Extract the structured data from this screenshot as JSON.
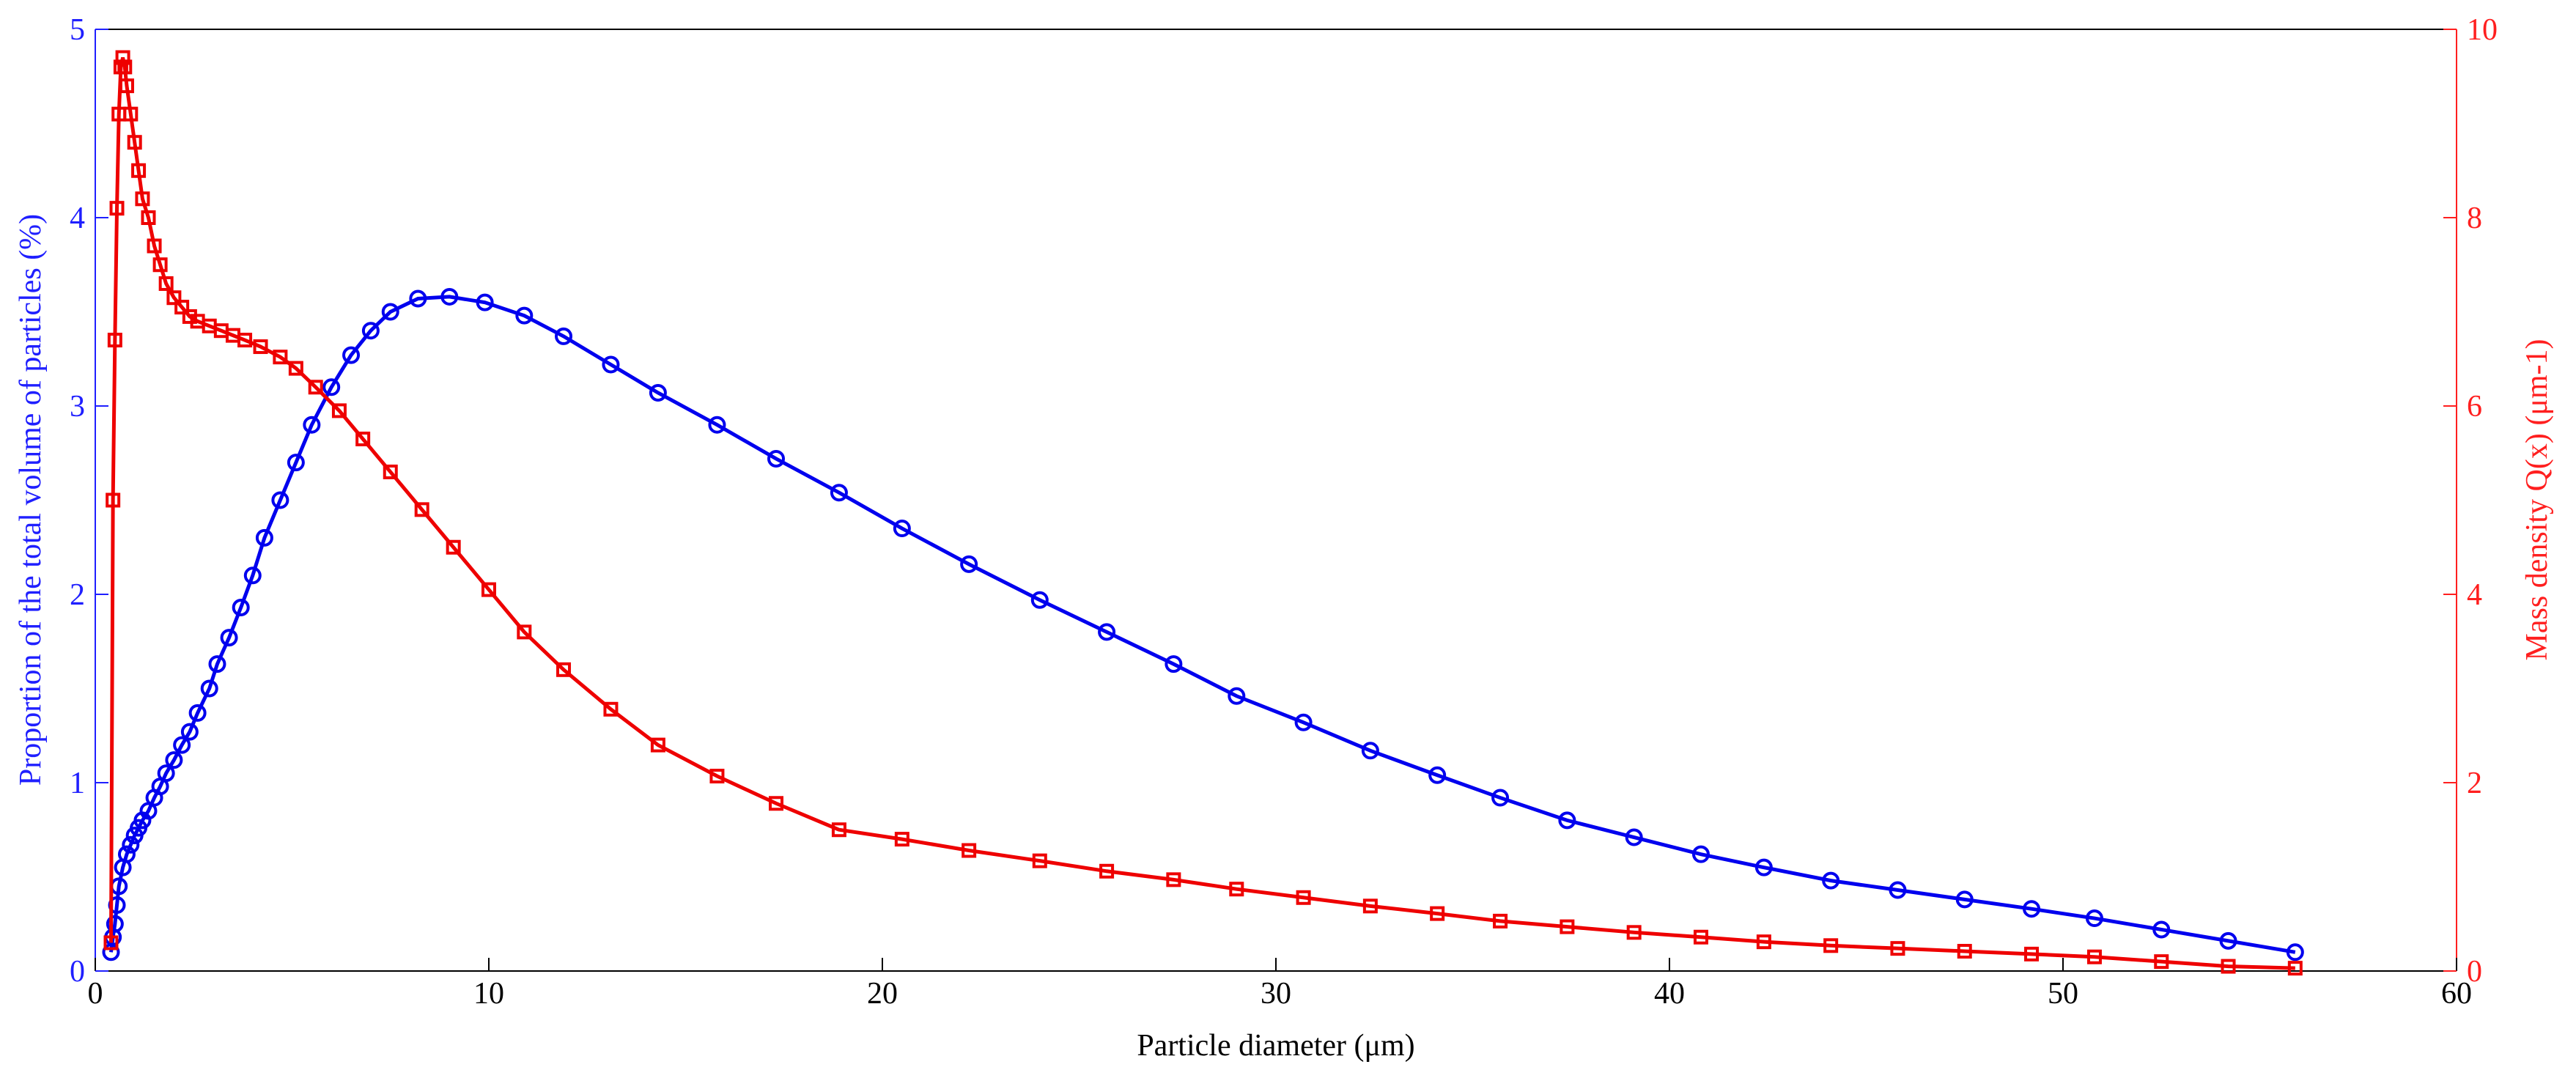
{
  "chart_data": {
    "type": "line",
    "xlabel": "Particle diameter (μm)",
    "ylabel": "Proportion of the total volume of particles (%)",
    "y2label": "Mass density Q(x) (μm-1)",
    "xlim": [
      0,
      60
    ],
    "xticks": [
      0,
      10,
      20,
      30,
      40,
      50,
      60
    ],
    "ylim": [
      0,
      5
    ],
    "yticks": [
      0,
      1,
      2,
      3,
      4,
      5
    ],
    "y2lim": [
      0,
      10
    ],
    "y2ticks": [
      0,
      2,
      4,
      6,
      8,
      10
    ],
    "ycolor": "#1f1fff",
    "y2color": "#ff1f1f",
    "series": [
      {
        "color": "#0000ee",
        "marker": "circle",
        "x": [
          0.4,
          0.45,
          0.5,
          0.55,
          0.6,
          0.7,
          0.8,
          0.9,
          1.0,
          1.1,
          1.2,
          1.35,
          1.5,
          1.65,
          1.8,
          2.0,
          2.2,
          2.4,
          2.6,
          2.9,
          3.1,
          3.4,
          3.7,
          4.0,
          4.3,
          4.7,
          5.1,
          5.5,
          6.0,
          6.5,
          7.0,
          7.5,
          8.2,
          9.0,
          9.9,
          10.9,
          11.9,
          13.1,
          14.3,
          15.8,
          17.3,
          18.9,
          20.5,
          22.2,
          24.0,
          25.7,
          27.4,
          29.0,
          30.7,
          32.4,
          34.1,
          35.7,
          37.4,
          39.1,
          40.8,
          42.4,
          44.1,
          45.8,
          47.5,
          49.2,
          50.8,
          52.5,
          54.2,
          55.9
        ],
        "values": [
          0.1,
          0.18,
          0.25,
          0.35,
          0.45,
          0.55,
          0.62,
          0.67,
          0.72,
          0.76,
          0.8,
          0.85,
          0.92,
          0.98,
          1.05,
          1.12,
          1.2,
          1.27,
          1.37,
          1.5,
          1.63,
          1.77,
          1.93,
          2.1,
          2.3,
          2.5,
          2.7,
          2.9,
          3.1,
          3.27,
          3.4,
          3.5,
          3.57,
          3.58,
          3.55,
          3.48,
          3.37,
          3.22,
          3.07,
          2.9,
          2.72,
          2.54,
          2.35,
          2.16,
          1.97,
          1.8,
          1.63,
          1.46,
          1.32,
          1.17,
          1.04,
          0.92,
          0.8,
          0.71,
          0.62,
          0.55,
          0.48,
          0.43,
          0.38,
          0.33,
          0.28,
          0.22,
          0.16,
          0.1
        ]
      },
      {
        "color": "#ee0000",
        "marker": "square",
        "axis": "y2",
        "x": [
          0.4,
          0.45,
          0.5,
          0.55,
          0.6,
          0.65,
          0.7,
          0.75,
          0.8,
          0.9,
          1.0,
          1.1,
          1.2,
          1.35,
          1.5,
          1.65,
          1.8,
          2.0,
          2.2,
          2.4,
          2.6,
          2.9,
          3.2,
          3.5,
          3.8,
          4.2,
          4.7,
          5.1,
          5.6,
          6.2,
          6.8,
          7.5,
          8.3,
          9.1,
          10.0,
          10.9,
          11.9,
          13.1,
          14.3,
          15.8,
          17.3,
          18.9,
          20.5,
          22.2,
          24.0,
          25.7,
          27.4,
          29.0,
          30.7,
          32.4,
          34.1,
          35.7,
          37.4,
          39.1,
          40.8,
          42.4,
          44.1,
          45.8,
          47.5,
          49.2,
          50.8,
          52.5,
          54.2,
          55.9
        ],
        "values": [
          0.3,
          5.0,
          6.7,
          8.1,
          9.1,
          9.6,
          9.7,
          9.6,
          9.4,
          9.1,
          8.8,
          8.5,
          8.2,
          8.0,
          7.7,
          7.5,
          7.3,
          7.15,
          7.05,
          6.95,
          6.9,
          6.85,
          6.8,
          6.75,
          6.7,
          6.63,
          6.52,
          6.4,
          6.2,
          5.95,
          5.65,
          5.3,
          4.9,
          4.5,
          4.05,
          3.6,
          3.2,
          2.78,
          2.4,
          2.07,
          1.78,
          1.5,
          1.4,
          1.28,
          1.17,
          1.06,
          0.97,
          0.87,
          0.78,
          0.69,
          0.61,
          0.53,
          0.47,
          0.41,
          0.36,
          0.31,
          0.27,
          0.24,
          0.21,
          0.18,
          0.15,
          0.1,
          0.05,
          0.03
        ]
      }
    ]
  }
}
